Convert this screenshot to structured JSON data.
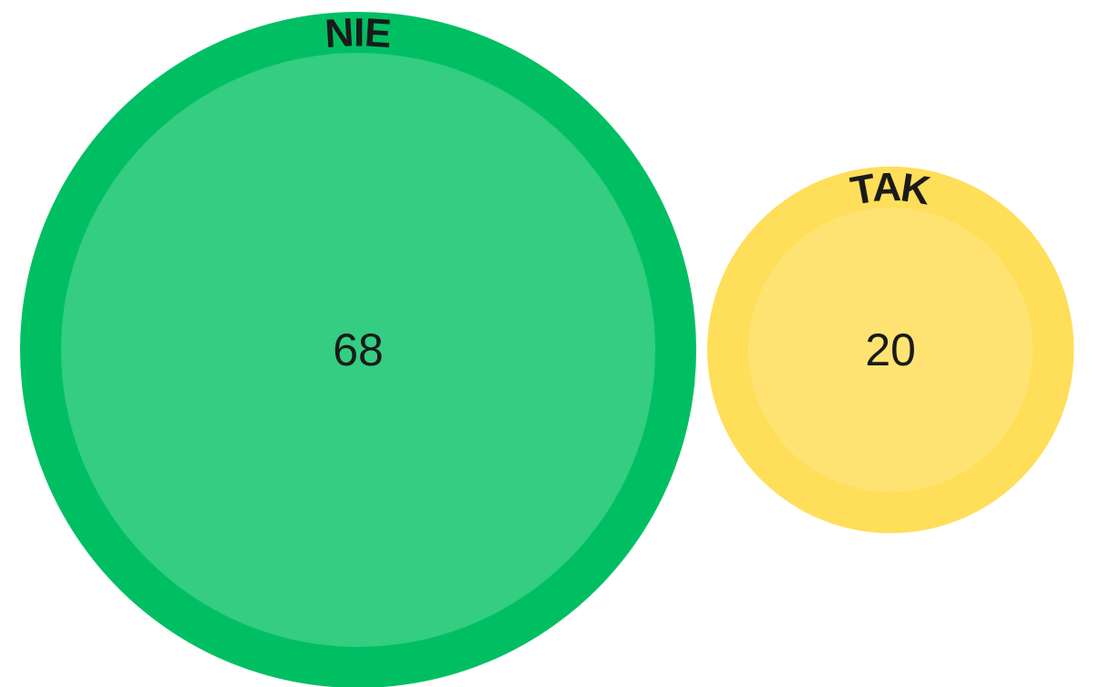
{
  "chart_data": {
    "type": "bubble",
    "categories": [
      "NIE",
      "TAK"
    ],
    "values": [
      68,
      20
    ],
    "colors": [
      "#00bf63",
      "#ffde59"
    ],
    "inner_colors": [
      "#34cd82",
      "#ffe372"
    ]
  }
}
